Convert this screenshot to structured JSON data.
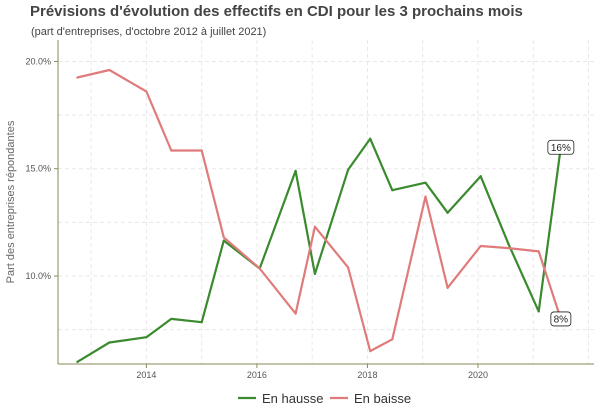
{
  "chart_data": {
    "type": "line",
    "title": "Prévisions d'évolution des effectifs en CDI pour les 3 prochains mois",
    "subtitle": "(part d'entreprises, d'octobre 2012 à juillet 2021)",
    "xlabel": "",
    "ylabel": "Part des entreprises répondantes",
    "xlim": [
      2012.4,
      2022.1
    ],
    "ylim": [
      5.9,
      21.0
    ],
    "x_ticks": [
      2014,
      2016,
      2018,
      2020
    ],
    "x_tick_labels": [
      "2014",
      "2016",
      "2018",
      "2020"
    ],
    "y_ticks": [
      10,
      15,
      20
    ],
    "y_tick_labels": [
      "10.0%",
      "15.0%",
      "20.0%"
    ],
    "grid": true,
    "legend_position": "bottom",
    "series": [
      {
        "name": "En hausse",
        "color": "#3a8a2e",
        "x": [
          2012.75,
          2013.33,
          2014.0,
          2014.45,
          2015.0,
          2015.4,
          2016.05,
          2016.7,
          2017.05,
          2017.65,
          2018.05,
          2018.45,
          2019.05,
          2019.45,
          2020.05,
          2020.55,
          2021.1,
          2021.5
        ],
        "values": [
          6.0,
          6.9,
          7.15,
          8.0,
          7.85,
          11.65,
          10.35,
          14.9,
          10.1,
          14.95,
          16.4,
          14.0,
          14.35,
          12.95,
          14.65,
          11.5,
          8.35,
          16.0
        ],
        "end_label": "16%"
      },
      {
        "name": "En baisse",
        "color": "#e07b7b",
        "x": [
          2012.75,
          2013.33,
          2014.0,
          2014.45,
          2015.0,
          2015.4,
          2016.05,
          2016.7,
          2017.05,
          2017.65,
          2018.05,
          2018.45,
          2019.05,
          2019.45,
          2020.05,
          2020.55,
          2021.1,
          2021.5
        ],
        "values": [
          19.25,
          19.6,
          18.6,
          15.85,
          15.85,
          11.8,
          10.35,
          8.25,
          12.3,
          10.4,
          6.5,
          7.05,
          13.7,
          9.45,
          11.4,
          11.3,
          11.15,
          8.0
        ],
        "end_label": "8%"
      }
    ]
  }
}
